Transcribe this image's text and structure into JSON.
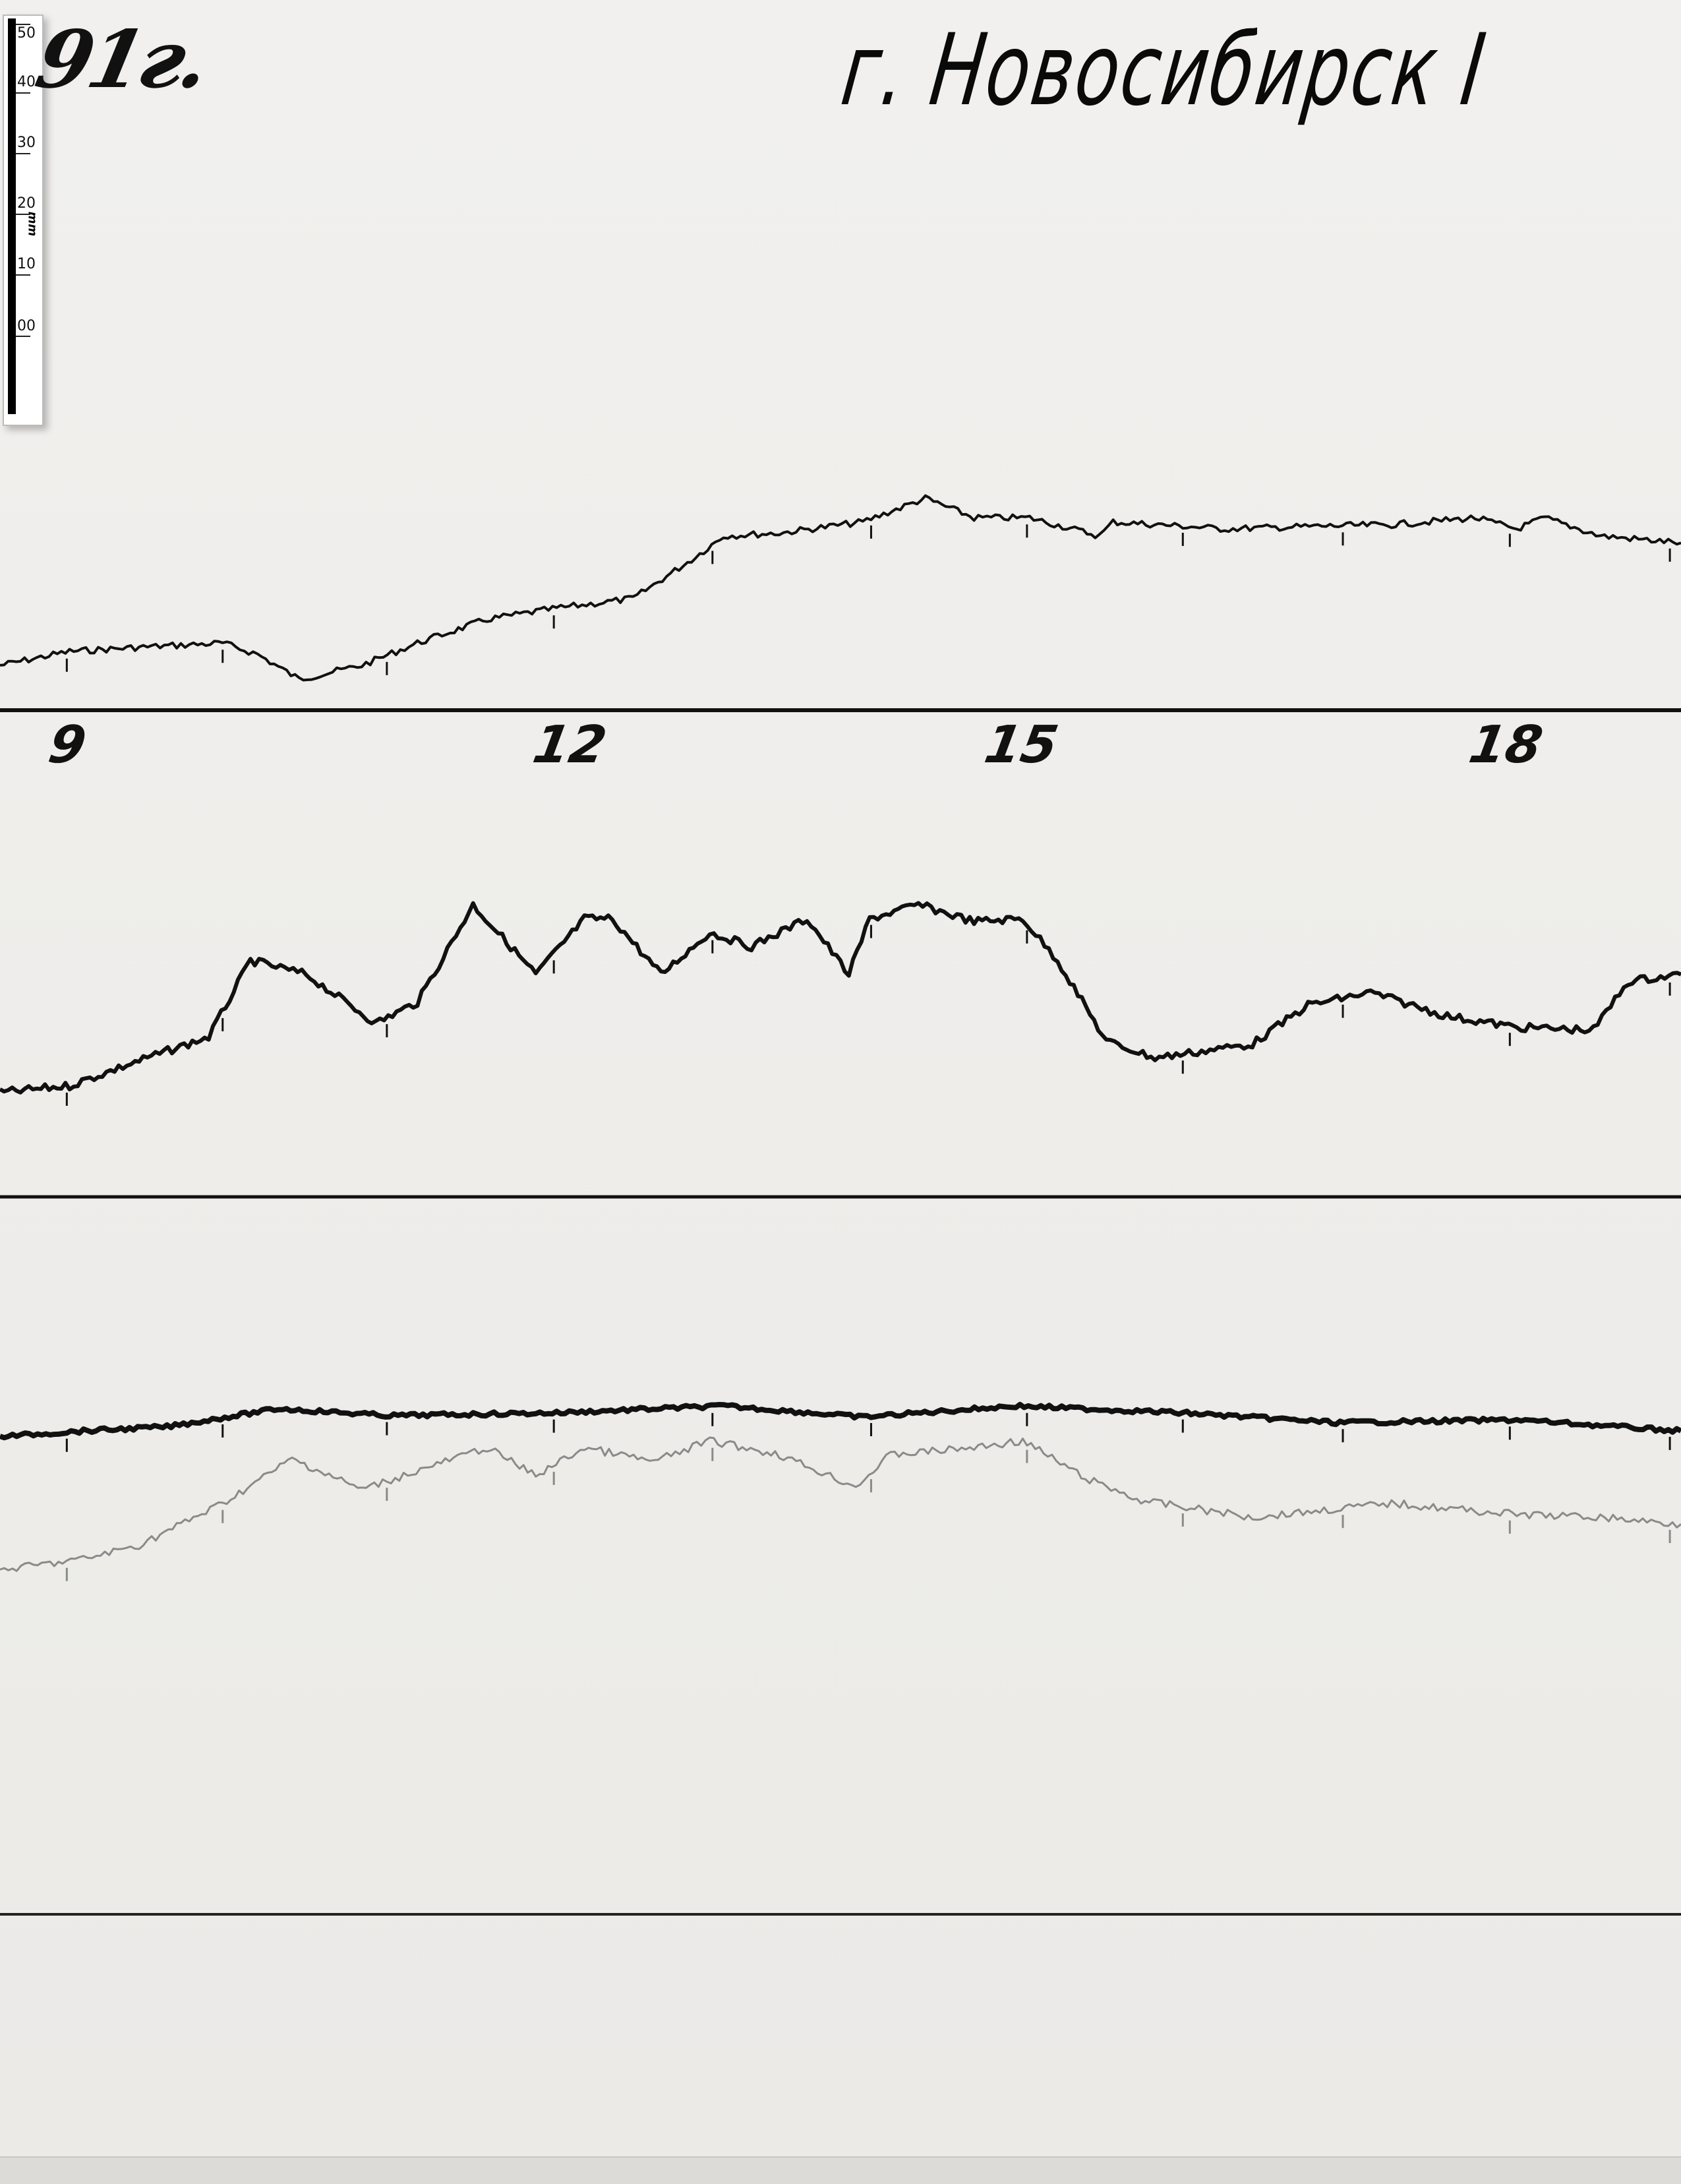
{
  "header": {
    "year_fragment": "91г.",
    "station_title": "г. Новосибирск I"
  },
  "scale_ruler": {
    "ticks": [
      "50",
      "40",
      "30",
      "20",
      "10",
      "00"
    ],
    "unit": "mm"
  },
  "hour_labels": [
    "9",
    "12",
    "15",
    "18"
  ],
  "colors": {
    "paper": "#efeeec",
    "ink": "#111111",
    "faint_trace": "#8a8a8a"
  }
}
